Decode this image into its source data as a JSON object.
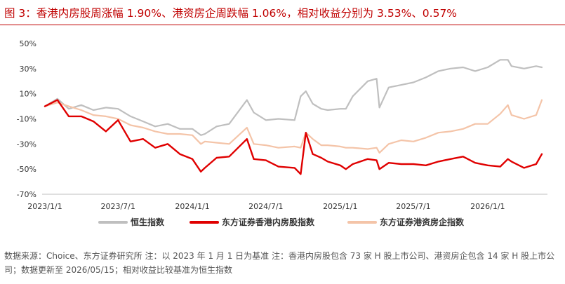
{
  "title": "图 3：香港内房股周涨幅 1.90%、港资房企周跌幅 1.06%，相对收益分别为 3.53%、0.57%",
  "source_note": "数据来源：Choice、东方证券研究所 注：以 2023 年 1 月 1 日为基准        注：香港内房股包含 73 家 H 股上市公司、港资房企包含 14 家 H 股上市公司；数据更新至 2026/05/15；相对收益比较基准为恒生指数",
  "chart_data": {
    "type": "line",
    "title": "",
    "xlabel": "",
    "ylabel": "",
    "ylim": [
      -70,
      50
    ],
    "y_ticks": [
      "50%",
      "30%",
      "10%",
      "-10%",
      "-30%",
      "-50%",
      "-70%"
    ],
    "y_tick_values": [
      50,
      30,
      10,
      -10,
      -30,
      -50,
      -70
    ],
    "x_ticks": [
      "2023/1/1",
      "2023/7/1",
      "2024/1/1",
      "2024/7/1",
      "2025/1/1",
      "2025/7/1",
      "2026/1/1"
    ],
    "xlim": [
      "2023/1/1",
      "2026/5/15"
    ],
    "grid": false,
    "legend_position": "bottom",
    "x": [
      "2023/1/1",
      "2023/2/1",
      "2023/3/1",
      "2023/4/1",
      "2023/5/1",
      "2023/6/1",
      "2023/7/1",
      "2023/8/1",
      "2023/9/1",
      "2023/10/1",
      "2023/11/1",
      "2023/12/1",
      "2024/1/1",
      "2024/1/22",
      "2024/2/1",
      "2024/3/1",
      "2024/4/1",
      "2024/5/15",
      "2024/6/1",
      "2024/7/1",
      "2024/8/1",
      "2024/9/10",
      "2024/9/25",
      "2024/10/8",
      "2024/10/25",
      "2024/11/15",
      "2024/12/1",
      "2025/1/1",
      "2025/1/15",
      "2025/2/1",
      "2025/3/10",
      "2025/4/1",
      "2025/4/8",
      "2025/5/1",
      "2025/6/1",
      "2025/7/1",
      "2025/8/1",
      "2025/9/1",
      "2025/10/1",
      "2025/11/1",
      "2025/12/1",
      "2026/1/1",
      "2026/2/1",
      "2026/2/20",
      "2026/3/1",
      "2026/4/1",
      "2026/5/1",
      "2026/5/15"
    ],
    "series": [
      {
        "name": "恒生指数",
        "color": "#bfbfbf",
        "values": [
          0,
          6,
          -2,
          1,
          -3,
          -1,
          -2,
          -8,
          -12,
          -16,
          -14,
          -18,
          -18,
          -23,
          -22,
          -16,
          -14,
          5,
          -5,
          -11,
          -10,
          -11,
          8,
          12,
          2,
          -2,
          -3,
          -2,
          -2,
          8,
          20,
          22,
          -1,
          15,
          17,
          19,
          23,
          28,
          30,
          31,
          28,
          31,
          37,
          37,
          32,
          30,
          32,
          31
        ]
      },
      {
        "name": "东方证券香港内房股指数",
        "color": "#e00000",
        "values": [
          0,
          5,
          -8,
          -8,
          -12,
          -20,
          -11,
          -28,
          -26,
          -33,
          -30,
          -38,
          -42,
          -52,
          -49,
          -41,
          -40,
          -26,
          -42,
          -43,
          -48,
          -49,
          -54,
          -21,
          -38,
          -41,
          -44,
          -47,
          -50,
          -46,
          -42,
          -43,
          -50,
          -45,
          -46,
          -46,
          -47,
          -44,
          -42,
          -40,
          -45,
          -47,
          -48,
          -42,
          -44,
          -49,
          -46,
          -38
        ]
      },
      {
        "name": "东方证券港资房企指数",
        "color": "#f4c4a8",
        "values": [
          0,
          3,
          0,
          -3,
          -7,
          -8,
          -10,
          -15,
          -17,
          -20,
          -22,
          -22,
          -23,
          -30,
          -28,
          -29,
          -30,
          -17,
          -30,
          -31,
          -33,
          -32,
          -33,
          -21,
          -26,
          -31,
          -31,
          -32,
          -33,
          -33,
          -34,
          -33,
          -37,
          -30,
          -27,
          -28,
          -25,
          -21,
          -20,
          -18,
          -14,
          -14,
          -6,
          1,
          -7,
          -10,
          -7,
          5
        ]
      }
    ]
  }
}
